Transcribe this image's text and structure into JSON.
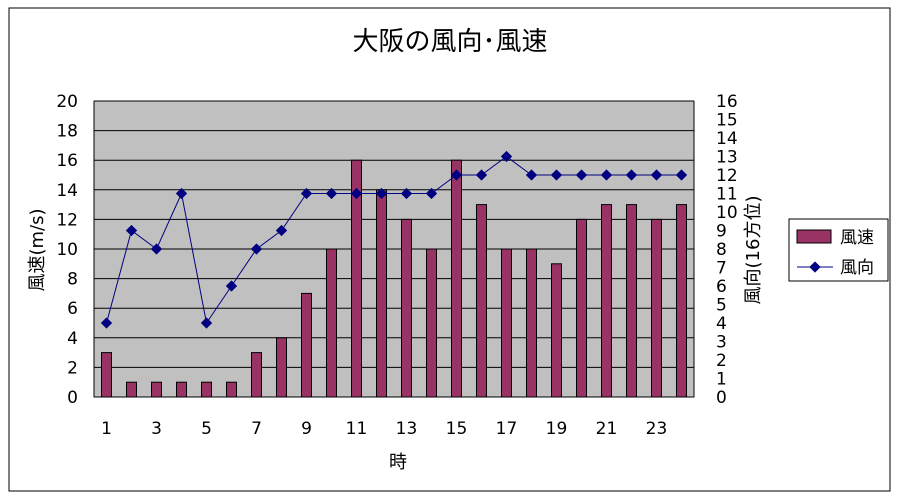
{
  "chart_data": {
    "type": "bar+line",
    "title": "大阪の風向･風速",
    "xlabel": "時",
    "ylabel_left": "風速(m/s)",
    "ylabel_right": "風向(16方位)",
    "ylim_left": [
      0,
      20
    ],
    "ylim_right": [
      0,
      16
    ],
    "yticks_left": [
      0,
      2,
      4,
      6,
      8,
      10,
      12,
      14,
      16,
      18,
      20
    ],
    "yticks_right": [
      0,
      1,
      2,
      3,
      4,
      5,
      6,
      7,
      8,
      9,
      10,
      11,
      12,
      13,
      14,
      15,
      16
    ],
    "categories": [
      1,
      2,
      3,
      4,
      5,
      6,
      7,
      8,
      9,
      10,
      11,
      12,
      13,
      14,
      15,
      16,
      17,
      18,
      19,
      20,
      21,
      22,
      23,
      24
    ],
    "x_tick_labels": [
      1,
      3,
      5,
      7,
      9,
      11,
      13,
      15,
      17,
      19,
      21,
      23
    ],
    "grid": true,
    "legend_position": "right",
    "series": [
      {
        "name": "風速",
        "type": "bar",
        "axis": "left",
        "color": "#993366",
        "values": [
          3,
          1,
          1,
          1,
          1,
          1,
          3,
          4,
          7,
          10,
          16,
          14,
          12,
          10,
          16,
          13,
          10,
          10,
          9,
          12,
          13,
          13,
          12,
          13
        ]
      },
      {
        "name": "風向",
        "type": "line",
        "axis": "right",
        "color": "#000080",
        "values": [
          4,
          9,
          8,
          11,
          4,
          6,
          8,
          9,
          11,
          11,
          11,
          11,
          11,
          11,
          12,
          12,
          13,
          12,
          12,
          12,
          12,
          12,
          12,
          12
        ]
      }
    ],
    "plot_background": "#c0c0c0"
  }
}
